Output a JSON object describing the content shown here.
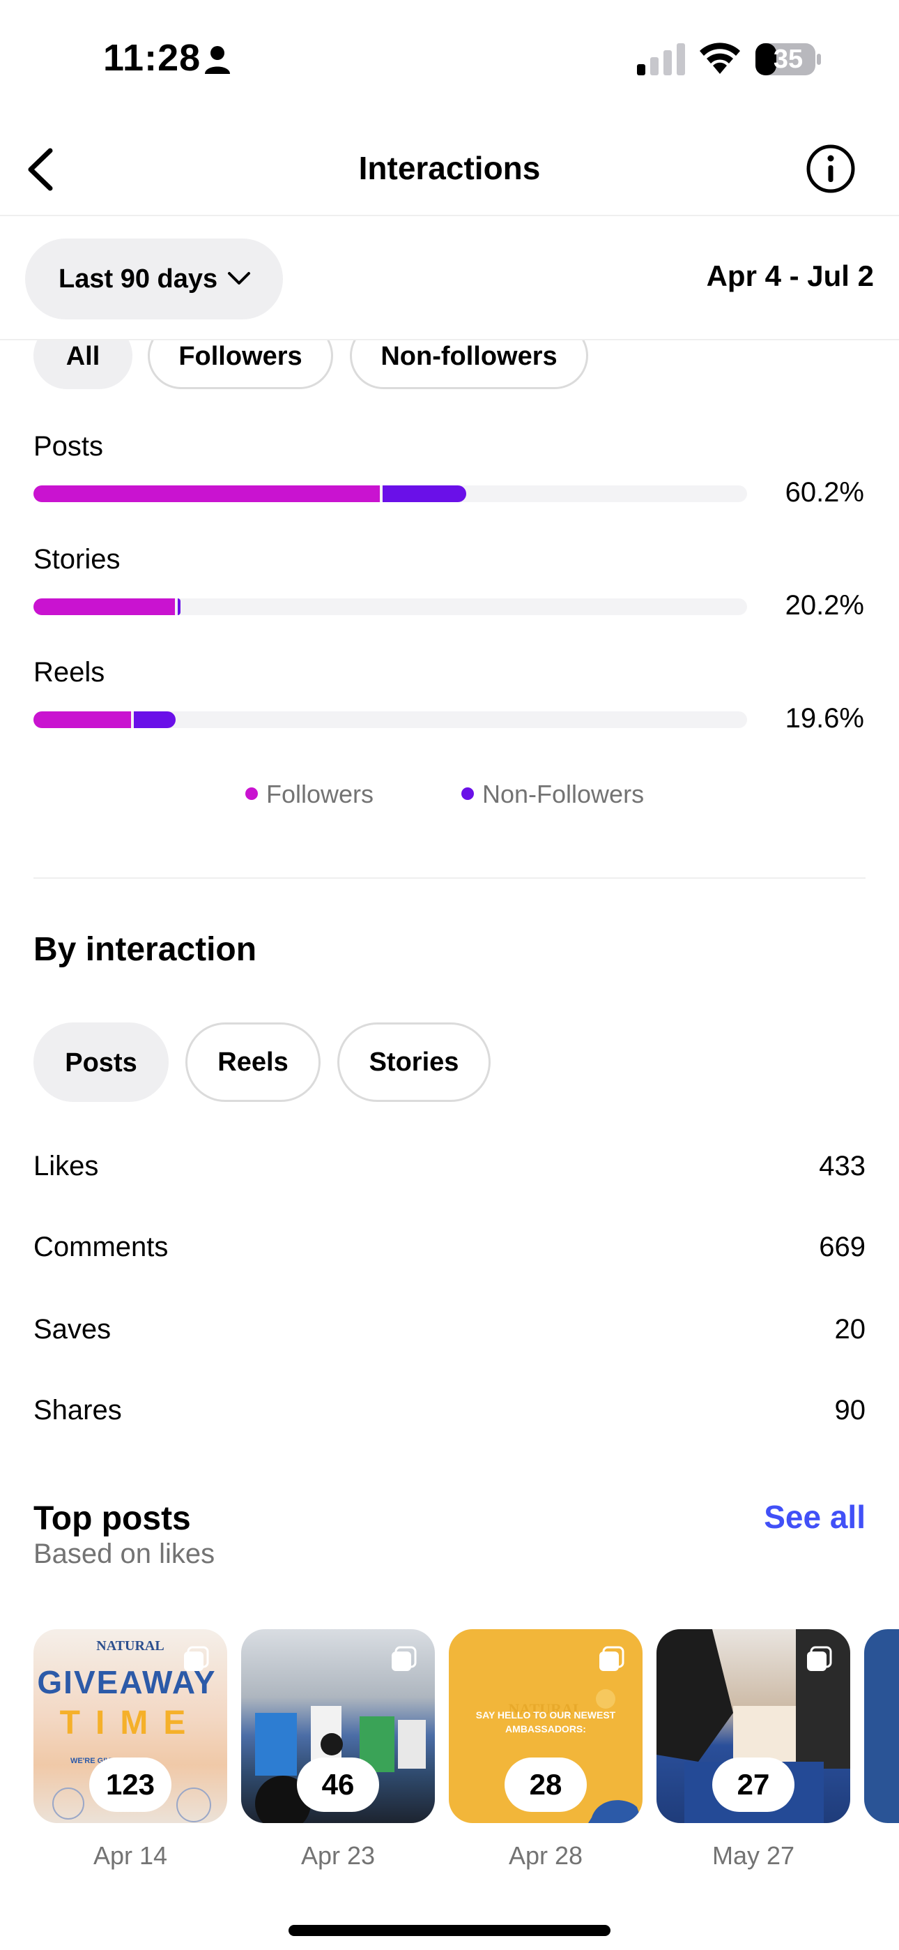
{
  "status_bar": {
    "time": "11:28",
    "battery": "35"
  },
  "header": {
    "title": "Interactions"
  },
  "date_filter": {
    "range_label": "Last 90 days",
    "dates": "Apr 4 - Jul 2"
  },
  "audience_tabs": [
    "All",
    "Followers",
    "Non-followers"
  ],
  "content_breakdown": [
    {
      "label": "Posts",
      "percent_text": "60.2%",
      "percent": 60.2,
      "followers_share": 48.5,
      "non_followers_share": 11.7
    },
    {
      "label": "Stories",
      "percent_text": "20.2%",
      "percent": 20.2,
      "followers_share": 19.8,
      "non_followers_share": 0.4
    },
    {
      "label": "Reels",
      "percent_text": "19.6%",
      "percent": 19.6,
      "followers_share": 13.7,
      "non_followers_share": 5.9
    }
  ],
  "legend": {
    "followers": "Followers",
    "non_followers": "Non-Followers"
  },
  "colors": {
    "followers": "#c913d0",
    "non_followers": "#6a10e8",
    "link": "#4150f7"
  },
  "by_interaction": {
    "title": "By interaction",
    "tabs": [
      "Posts",
      "Reels",
      "Stories"
    ],
    "metrics": [
      {
        "label": "Likes",
        "value": "433"
      },
      {
        "label": "Comments",
        "value": "669"
      },
      {
        "label": "Saves",
        "value": "20"
      },
      {
        "label": "Shares",
        "value": "90"
      }
    ]
  },
  "top_posts": {
    "title": "Top posts",
    "subtitle": "Based on likes",
    "see_all": "See all",
    "posts": [
      {
        "count": "123",
        "date": "Apr 14",
        "brand": "NATURAL",
        "headline_1": "GIVEAWAY",
        "headline_2": "TIME",
        "line": "WE'RE GIVING AWAY:"
      },
      {
        "count": "46",
        "date": "Apr 23"
      },
      {
        "count": "28",
        "date": "Apr 28",
        "brand": "NATURAL",
        "headline_1": "SAY HELLO TO OUR NEWEST",
        "headline_2": "AMBASSADORS:"
      },
      {
        "count": "27",
        "date": "May 27"
      }
    ]
  }
}
